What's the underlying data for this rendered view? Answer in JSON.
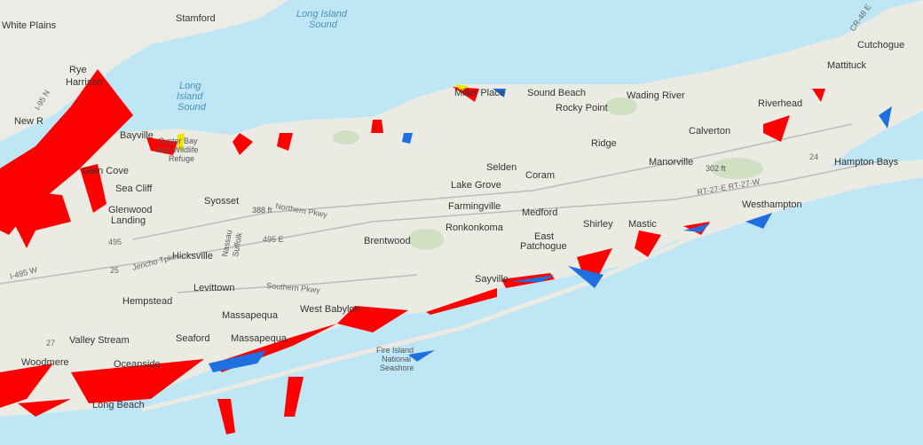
{
  "map": {
    "places": [
      "White Plains",
      "Stamford",
      "Rye",
      "Harrison",
      "New R",
      "Bayville",
      "Glen Cove",
      "Sea Cliff",
      "Glenwood",
      "Landing",
      "Syosset",
      "Hicksville",
      "Levittown",
      "Hempstead",
      "Massapequa",
      "Valley Stream",
      "Seaford",
      "Massapequa",
      "Woodmere",
      "Oceanside",
      "Long Beach",
      "West Babylon",
      "Brentwood",
      "Ronkonkoma",
      "Farmingville",
      "Lake Grove",
      "Selden",
      "Coram",
      "Medford",
      "East",
      "Patchogue",
      "Shirley",
      "Mastic",
      "Sayville",
      "Miller Place",
      "Sound Beach",
      "Rocky Point",
      "Ridge",
      "Wading River",
      "Calverton",
      "Riverhead",
      "Manorville",
      "Westhampton",
      "Hampton Bays",
      "Mattituck",
      "Cutchogue"
    ],
    "water": [
      "Long Island",
      "Sound",
      "Long",
      "Island",
      "Sound"
    ],
    "features": [
      "Oyster Bay",
      "Natl Wildlife",
      "Refuge",
      "Fire Island",
      "National",
      "Seashore",
      "Suffolk",
      "Nassau",
      "388 ft",
      "302 ft"
    ],
    "roads": [
      "Northern Pkwy",
      "Southern Pkwy",
      "Jericho Tpke",
      "495",
      "495 E",
      "I-495 W",
      "25",
      "27",
      "24",
      "RT-27-E RT-27-W",
      "I-95 N",
      "CR-48 E"
    ]
  }
}
